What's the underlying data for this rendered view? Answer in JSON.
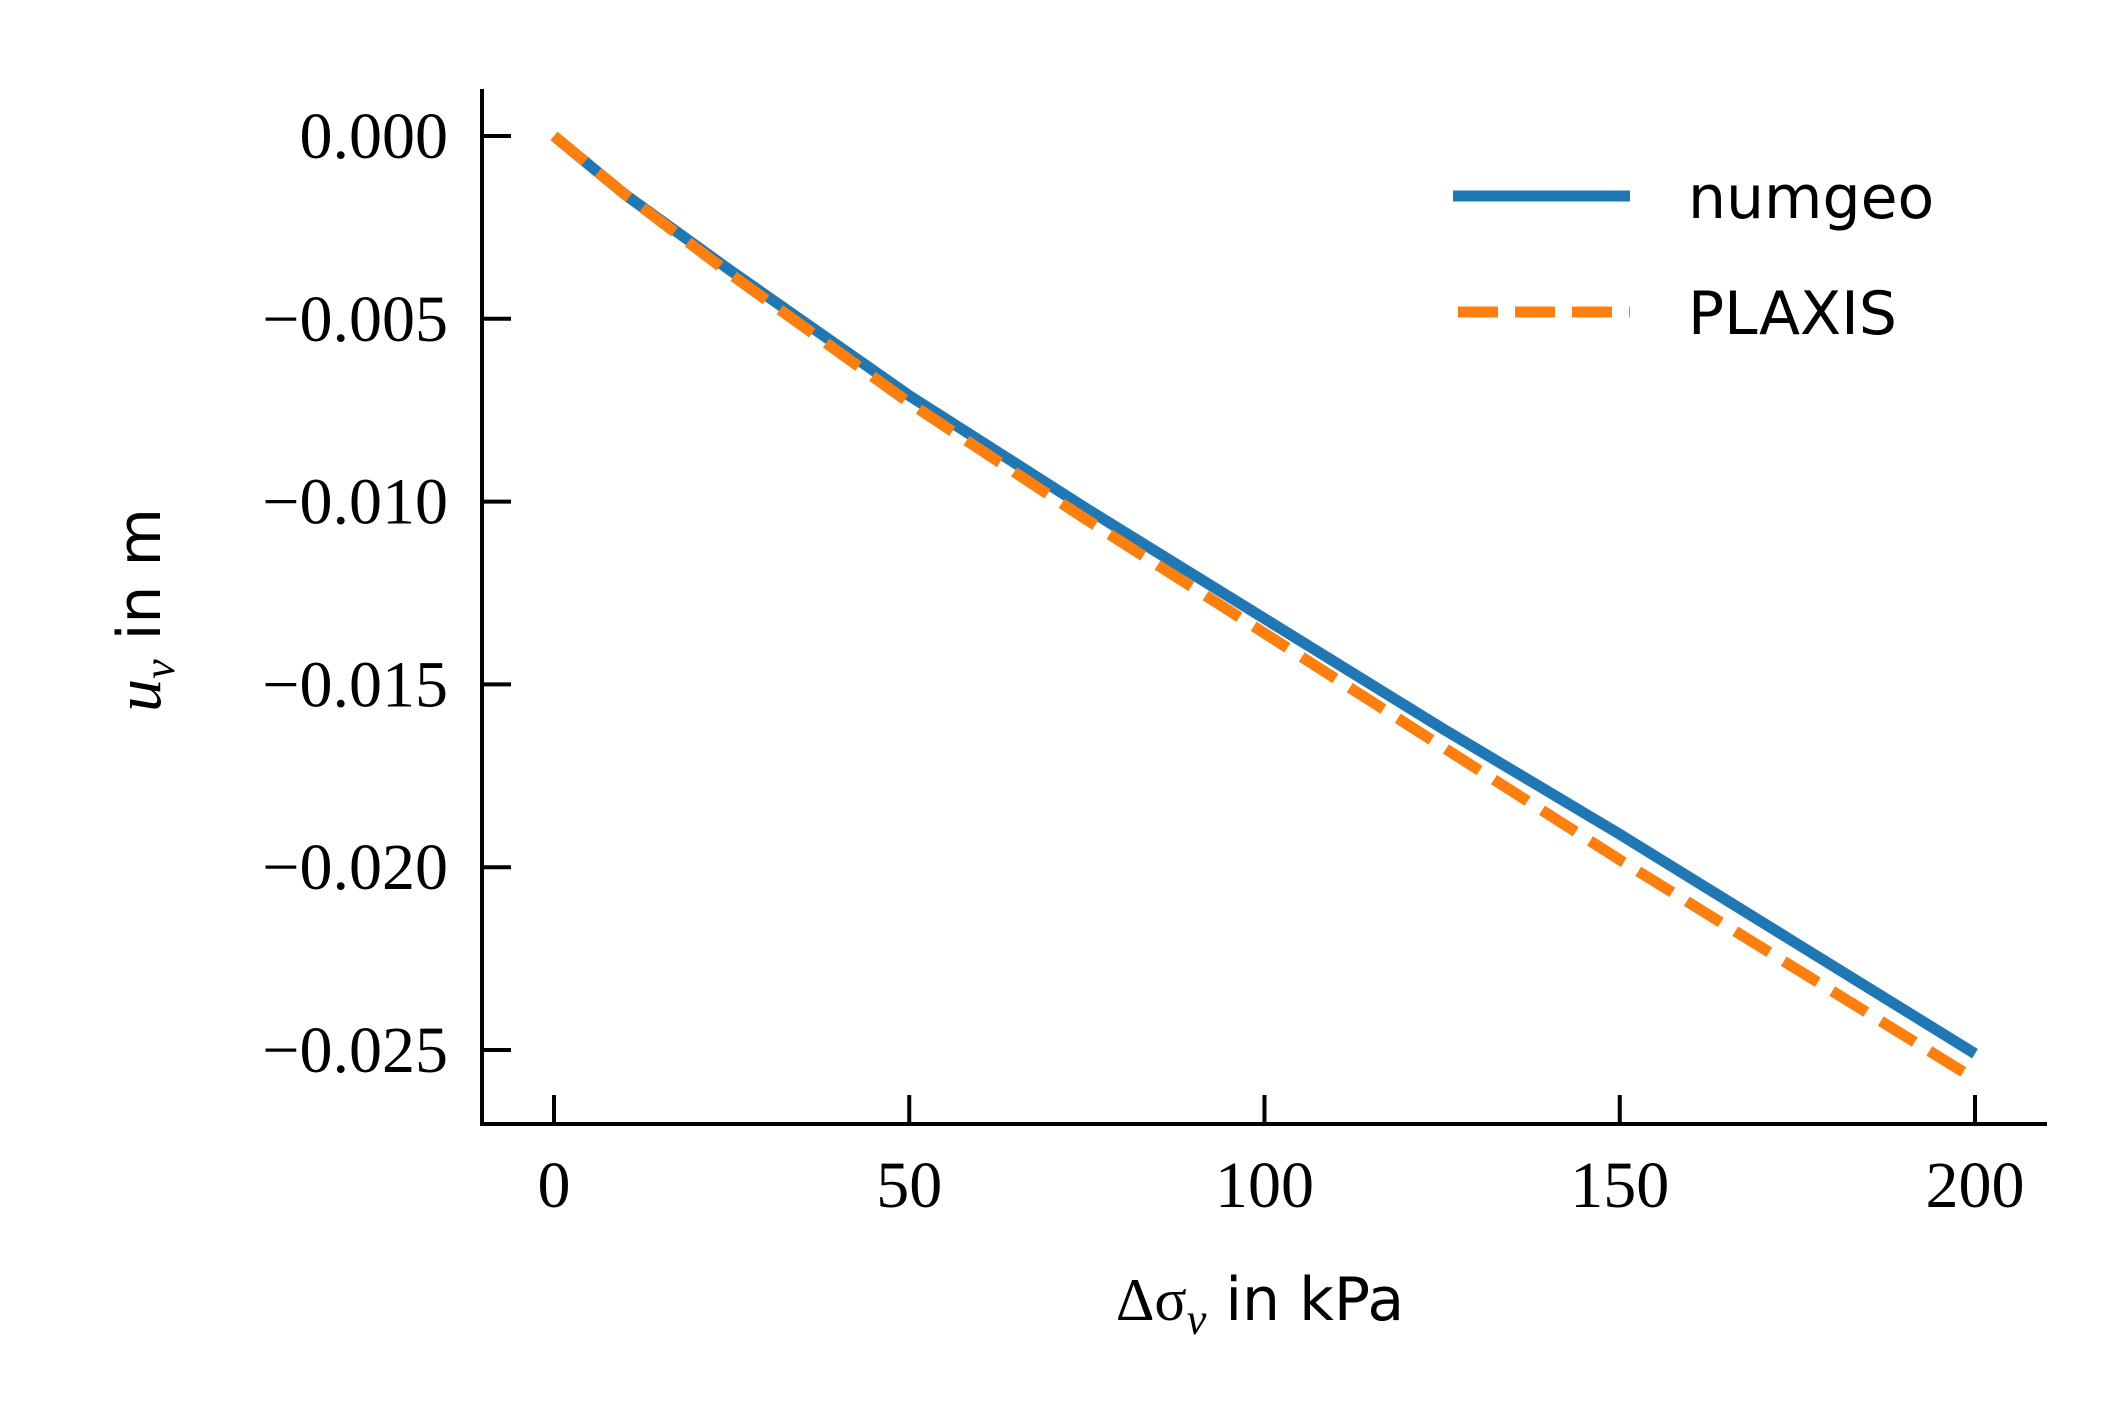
{
  "chart_data": {
    "type": "line",
    "title": "",
    "xlabel": "Δσ_v in kPa",
    "xlabel_math": "Δσ",
    "xlabel_sub": "v",
    "xlabel_text": " in kPa",
    "ylabel": "u_v in m",
    "ylabel_math": "u",
    "ylabel_sub": "v",
    "ylabel_text": " in m",
    "xlim": [
      -10,
      210
    ],
    "ylim": [
      -0.027,
      0.0013
    ],
    "xticks": [
      0,
      50,
      100,
      150,
      200
    ],
    "xtick_labels": [
      "0",
      "50",
      "100",
      "150",
      "200"
    ],
    "yticks": [
      0,
      -0.005,
      -0.01,
      -0.015,
      -0.02,
      -0.025
    ],
    "ytick_labels": [
      "0.000",
      "−0.005",
      "−0.010",
      "−0.015",
      "−0.020",
      "−0.025"
    ],
    "grid": false,
    "legend_position": "top-right",
    "series": [
      {
        "name": "numgeo",
        "color": "#1f77b4",
        "style": "solid",
        "x": [
          0,
          10,
          25,
          50,
          75,
          100,
          125,
          150,
          175,
          200
        ],
        "y": [
          0,
          -0.0016,
          -0.0037,
          -0.0071,
          -0.0102,
          -0.0132,
          -0.0162,
          -0.0191,
          -0.0221,
          -0.0251
        ]
      },
      {
        "name": "PLAXIS",
        "color": "#ff7f0e",
        "style": "dashed",
        "x": [
          0,
          10,
          25,
          50,
          75,
          100,
          125,
          150,
          175,
          200
        ],
        "y": [
          0,
          -0.0016,
          -0.0038,
          -0.0073,
          -0.0105,
          -0.0136,
          -0.0167,
          -0.0198,
          -0.0228,
          -0.0258
        ]
      }
    ]
  }
}
